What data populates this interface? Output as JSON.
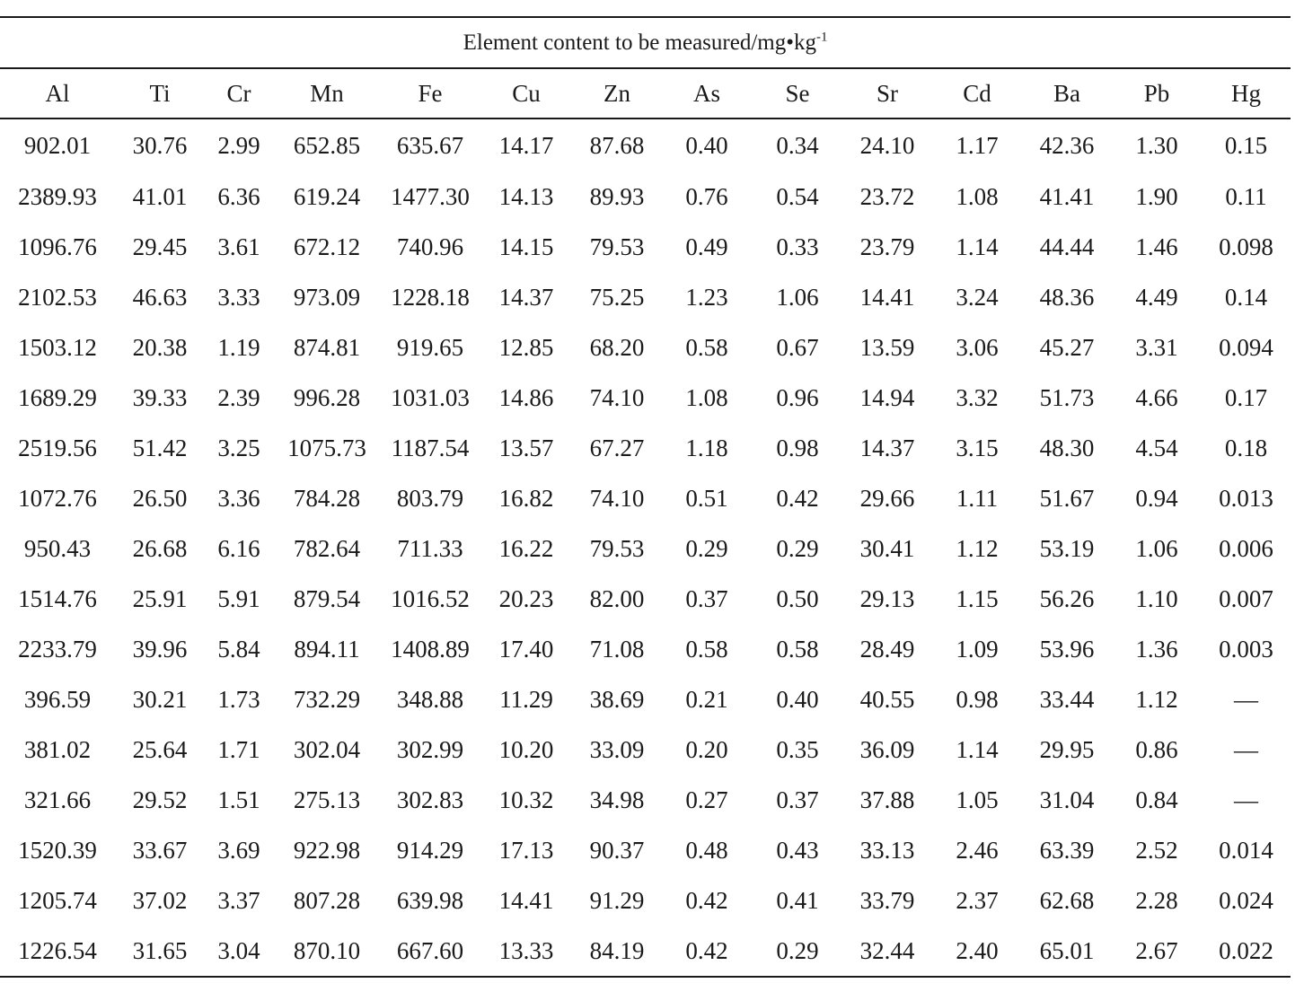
{
  "table": {
    "caption_main": "Element content to be measured/mg•kg",
    "caption_sup": "-1",
    "columns": [
      "Al",
      "Ti",
      "Cr",
      "Mn",
      "Fe",
      "Cu",
      "Zn",
      "As",
      "Se",
      "Sr",
      "Cd",
      "Ba",
      "Pb",
      "Hg"
    ],
    "rows": [
      [
        "902.01",
        "30.76",
        "2.99",
        "652.85",
        "635.67",
        "14.17",
        "87.68",
        "0.40",
        "0.34",
        "24.10",
        "1.17",
        "42.36",
        "1.30",
        "0.15"
      ],
      [
        "2389.93",
        "41.01",
        "6.36",
        "619.24",
        "1477.30",
        "14.13",
        "89.93",
        "0.76",
        "0.54",
        "23.72",
        "1.08",
        "41.41",
        "1.90",
        "0.11"
      ],
      [
        "1096.76",
        "29.45",
        "3.61",
        "672.12",
        "740.96",
        "14.15",
        "79.53",
        "0.49",
        "0.33",
        "23.79",
        "1.14",
        "44.44",
        "1.46",
        "0.098"
      ],
      [
        "2102.53",
        "46.63",
        "3.33",
        "973.09",
        "1228.18",
        "14.37",
        "75.25",
        "1.23",
        "1.06",
        "14.41",
        "3.24",
        "48.36",
        "4.49",
        "0.14"
      ],
      [
        "1503.12",
        "20.38",
        "1.19",
        "874.81",
        "919.65",
        "12.85",
        "68.20",
        "0.58",
        "0.67",
        "13.59",
        "3.06",
        "45.27",
        "3.31",
        "0.094"
      ],
      [
        "1689.29",
        "39.33",
        "2.39",
        "996.28",
        "1031.03",
        "14.86",
        "74.10",
        "1.08",
        "0.96",
        "14.94",
        "3.32",
        "51.73",
        "4.66",
        "0.17"
      ],
      [
        "2519.56",
        "51.42",
        "3.25",
        "1075.73",
        "1187.54",
        "13.57",
        "67.27",
        "1.18",
        "0.98",
        "14.37",
        "3.15",
        "48.30",
        "4.54",
        "0.18"
      ],
      [
        "1072.76",
        "26.50",
        "3.36",
        "784.28",
        "803.79",
        "16.82",
        "74.10",
        "0.51",
        "0.42",
        "29.66",
        "1.11",
        "51.67",
        "0.94",
        "0.013"
      ],
      [
        "950.43",
        "26.68",
        "6.16",
        "782.64",
        "711.33",
        "16.22",
        "79.53",
        "0.29",
        "0.29",
        "30.41",
        "1.12",
        "53.19",
        "1.06",
        "0.006"
      ],
      [
        "1514.76",
        "25.91",
        "5.91",
        "879.54",
        "1016.52",
        "20.23",
        "82.00",
        "0.37",
        "0.50",
        "29.13",
        "1.15",
        "56.26",
        "1.10",
        "0.007"
      ],
      [
        "2233.79",
        "39.96",
        "5.84",
        "894.11",
        "1408.89",
        "17.40",
        "71.08",
        "0.58",
        "0.58",
        "28.49",
        "1.09",
        "53.96",
        "1.36",
        "0.003"
      ],
      [
        "396.59",
        "30.21",
        "1.73",
        "732.29",
        "348.88",
        "11.29",
        "38.69",
        "0.21",
        "0.40",
        "40.55",
        "0.98",
        "33.44",
        "1.12",
        "—"
      ],
      [
        "381.02",
        "25.64",
        "1.71",
        "302.04",
        "302.99",
        "10.20",
        "33.09",
        "0.20",
        "0.35",
        "36.09",
        "1.14",
        "29.95",
        "0.86",
        "—"
      ],
      [
        "321.66",
        "29.52",
        "1.51",
        "275.13",
        "302.83",
        "10.32",
        "34.98",
        "0.27",
        "0.37",
        "37.88",
        "1.05",
        "31.04",
        "0.84",
        "—"
      ],
      [
        "1520.39",
        "33.67",
        "3.69",
        "922.98",
        "914.29",
        "17.13",
        "90.37",
        "0.48",
        "0.43",
        "33.13",
        "2.46",
        "63.39",
        "2.52",
        "0.014"
      ],
      [
        "1205.74",
        "37.02",
        "3.37",
        "807.28",
        "639.98",
        "14.41",
        "91.29",
        "0.42",
        "0.41",
        "33.79",
        "2.37",
        "62.68",
        "2.28",
        "0.024"
      ],
      [
        "1226.54",
        "31.65",
        "3.04",
        "870.10",
        "667.60",
        "13.33",
        "84.19",
        "0.42",
        "0.29",
        "32.44",
        "2.40",
        "65.01",
        "2.67",
        "0.022"
      ]
    ]
  }
}
